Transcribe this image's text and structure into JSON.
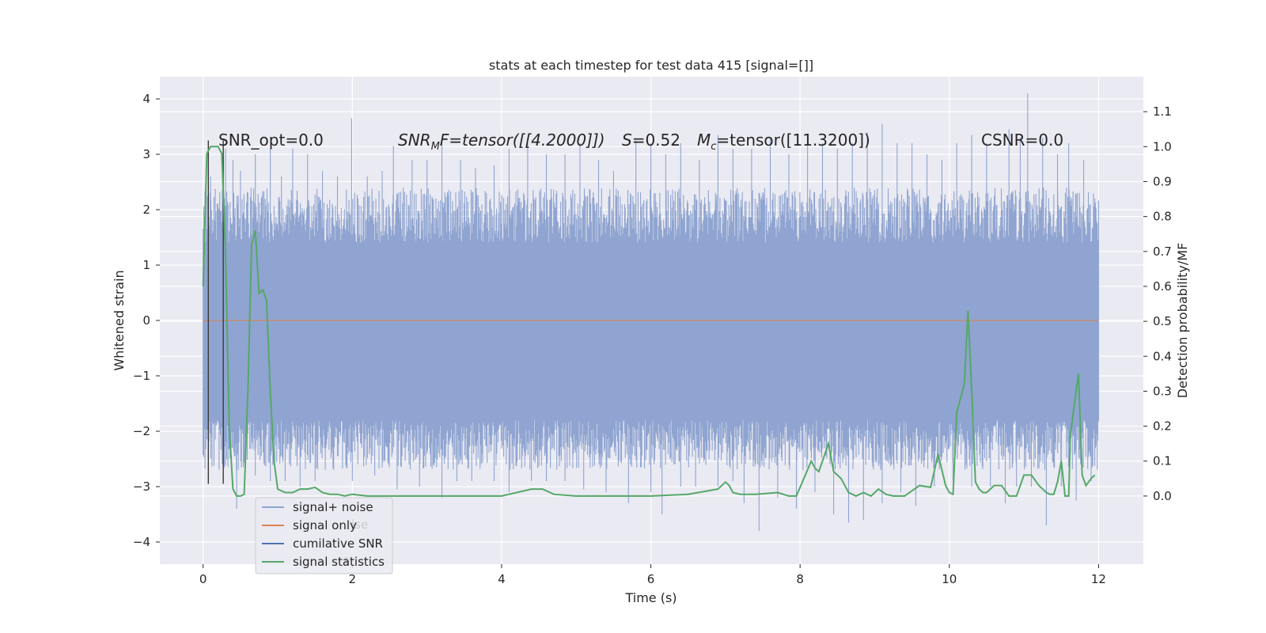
{
  "chart_data": {
    "type": "line",
    "title": "stats at each timestep for test data 415 [signal=[]]",
    "xlabel": "Time (s)",
    "ylabel_left": "Whitened strain",
    "ylabel_right": "Detection probability/MF",
    "xlim": [
      -0.58,
      12.6
    ],
    "ylim_left": [
      -4.4,
      4.4
    ],
    "ylim_right": [
      -0.195,
      1.2
    ],
    "xticks": [
      0,
      2,
      4,
      6,
      8,
      10,
      12
    ],
    "xtick_labels": [
      "0",
      "2",
      "4",
      "6",
      "8",
      "10",
      "12"
    ],
    "yticks_left": [
      4,
      3,
      2,
      1,
      0,
      -1,
      -2,
      -3,
      -4
    ],
    "ytick_labels_left": [
      "4",
      "3",
      "2",
      "1",
      "0",
      "−1",
      "−2",
      "−3",
      "−4"
    ],
    "yticks_right": [
      1.1,
      1.0,
      0.9,
      0.8,
      0.7,
      0.6,
      0.5,
      0.4,
      0.3,
      0.2,
      0.1,
      0.0
    ],
    "ytick_labels_right": [
      "1.1",
      "1.0",
      "0.9",
      "0.8",
      "0.7",
      "0.6",
      "0.5",
      "0.4",
      "0.3",
      "0.2",
      "0.1",
      "0.0"
    ],
    "annotations": {
      "snr_opt": "SNR_opt=0.0",
      "snr_mf_prefix": "SNR",
      "snr_mf_sub": "M",
      "snr_mf_rest": "F=tensor([[4.2000]])",
      "s_var": "S",
      "s_val": "=0.52",
      "mc_var": "M",
      "mc_sub": "c",
      "mc_rest": "=tensor([11.3200])",
      "csnr": "CSNR=0.0"
    },
    "legend": {
      "location": "lower-left",
      "entries": [
        {
          "label": "signal+ noise",
          "color": "#8fa4d0"
        },
        {
          "label": "signal only",
          "color": "#dd8452"
        },
        {
          "label": "cumilative SNR",
          "color": "#4c72b0"
        },
        {
          "label": "signal statistics",
          "color": "#55a868"
        }
      ],
      "ghost_text_1": "ise",
      "ghost_text_2": "s"
    },
    "series": [
      {
        "name": "signal+ noise",
        "color": "#8fa4d0",
        "t_range": [
          0,
          12
        ],
        "band_low": -1.8,
        "band_high": 1.38,
        "peaks_high": [
          [
            0.1,
            2.6
          ],
          [
            0.3,
            3.1
          ],
          [
            0.4,
            2.9
          ],
          [
            0.5,
            2.7
          ],
          [
            0.7,
            3.0
          ],
          [
            0.9,
            3.1
          ],
          [
            1.05,
            2.6
          ],
          [
            1.2,
            3.1
          ],
          [
            1.4,
            3.0
          ],
          [
            1.6,
            2.7
          ],
          [
            1.8,
            2.6
          ],
          [
            1.99,
            3.65
          ],
          [
            2.2,
            2.6
          ],
          [
            2.4,
            2.7
          ],
          [
            2.55,
            3.15
          ],
          [
            2.8,
            2.9
          ],
          [
            3.0,
            2.9
          ],
          [
            3.2,
            3.2
          ],
          [
            3.45,
            2.9
          ],
          [
            3.65,
            2.75
          ],
          [
            3.9,
            2.8
          ],
          [
            4.1,
            3.1
          ],
          [
            4.35,
            3.2
          ],
          [
            4.6,
            3.0
          ],
          [
            4.85,
            3.0
          ],
          [
            5.05,
            3.2
          ],
          [
            5.3,
            2.9
          ],
          [
            5.5,
            2.7
          ],
          [
            5.8,
            3.25
          ],
          [
            6.0,
            3.2
          ],
          [
            6.2,
            3.0
          ],
          [
            6.4,
            3.2
          ],
          [
            6.65,
            2.9
          ],
          [
            6.9,
            3.35
          ],
          [
            7.1,
            3.1
          ],
          [
            7.35,
            3.1
          ],
          [
            7.6,
            3.3
          ],
          [
            7.85,
            3.0
          ],
          [
            8.1,
            3.15
          ],
          [
            8.3,
            3.2
          ],
          [
            8.5,
            3.1
          ],
          [
            8.7,
            3.2
          ],
          [
            8.9,
            3.4
          ],
          [
            9.1,
            3.55
          ],
          [
            9.3,
            3.2
          ],
          [
            9.5,
            3.2
          ],
          [
            9.7,
            3.0
          ],
          [
            9.9,
            2.9
          ],
          [
            10.1,
            3.2
          ],
          [
            10.3,
            3.35
          ],
          [
            10.5,
            3.2
          ],
          [
            10.8,
            3.45
          ],
          [
            10.95,
            3.3
          ],
          [
            11.05,
            4.1
          ],
          [
            11.25,
            3.3
          ],
          [
            11.45,
            3.0
          ],
          [
            11.6,
            3.2
          ],
          [
            11.8,
            2.9
          ],
          [
            11.95,
            2.2
          ]
        ],
        "peaks_low": [
          [
            0.1,
            -2.0
          ],
          [
            0.3,
            -2.6
          ],
          [
            0.45,
            -3.4
          ],
          [
            0.7,
            -2.8
          ],
          [
            0.9,
            -2.9
          ],
          [
            1.1,
            -2.9
          ],
          [
            1.3,
            -3.0
          ],
          [
            1.5,
            -2.9
          ],
          [
            1.75,
            -2.7
          ],
          [
            2.0,
            -2.9
          ],
          [
            2.3,
            -2.8
          ],
          [
            2.6,
            -3.05
          ],
          [
            2.9,
            -3.0
          ],
          [
            3.2,
            -3.2
          ],
          [
            3.4,
            -2.9
          ],
          [
            3.6,
            -2.9
          ],
          [
            3.9,
            -2.9
          ],
          [
            4.1,
            -3.1
          ],
          [
            4.4,
            -2.9
          ],
          [
            4.6,
            -2.9
          ],
          [
            4.85,
            -2.9
          ],
          [
            5.1,
            -3.05
          ],
          [
            5.4,
            -3.1
          ],
          [
            5.7,
            -3.3
          ],
          [
            6.0,
            -3.1
          ],
          [
            6.15,
            -3.5
          ],
          [
            6.4,
            -3.0
          ],
          [
            6.6,
            -3.0
          ],
          [
            6.9,
            -3.0
          ],
          [
            7.1,
            -2.9
          ],
          [
            7.25,
            -3.3
          ],
          [
            7.45,
            -3.8
          ],
          [
            7.7,
            -3.2
          ],
          [
            7.95,
            -3.4
          ],
          [
            8.2,
            -3.1
          ],
          [
            8.45,
            -3.5
          ],
          [
            8.65,
            -3.65
          ],
          [
            8.85,
            -3.6
          ],
          [
            9.1,
            -3.3
          ],
          [
            9.35,
            -3.1
          ],
          [
            9.55,
            -3.35
          ],
          [
            9.8,
            -3.0
          ],
          [
            10.05,
            -2.9
          ],
          [
            10.3,
            -3.0
          ],
          [
            10.55,
            -3.0
          ],
          [
            10.75,
            -3.3
          ],
          [
            10.9,
            -3.0
          ],
          [
            11.1,
            -3.0
          ],
          [
            11.3,
            -3.7
          ],
          [
            11.5,
            -3.0
          ],
          [
            11.7,
            -3.25
          ],
          [
            11.9,
            -2.9
          ]
        ]
      },
      {
        "name": "signal only",
        "color": "#dd8452",
        "x": [
          0,
          12
        ],
        "y": [
          0,
          0
        ]
      },
      {
        "name": "cumilative SNR",
        "color": "#4c72b0",
        "x": [],
        "y": []
      },
      {
        "name": "signal statistics",
        "color": "#55a868",
        "axis": "right",
        "x": [
          0.0,
          0.05,
          0.1,
          0.15,
          0.2,
          0.25,
          0.3,
          0.35,
          0.4,
          0.45,
          0.5,
          0.55,
          0.6,
          0.65,
          0.7,
          0.75,
          0.8,
          0.85,
          0.9,
          0.95,
          1.0,
          1.1,
          1.2,
          1.3,
          1.4,
          1.5,
          1.6,
          1.7,
          1.8,
          1.9,
          2.0,
          2.2,
          2.5,
          3.0,
          3.5,
          4.0,
          4.4,
          4.55,
          4.7,
          5.0,
          5.5,
          6.0,
          6.5,
          6.9,
          7.0,
          7.05,
          7.1,
          7.2,
          7.4,
          7.7,
          7.85,
          7.95,
          8.05,
          8.15,
          8.2,
          8.25,
          8.3,
          8.38,
          8.45,
          8.55,
          8.65,
          8.75,
          8.85,
          8.95,
          9.05,
          9.15,
          9.25,
          9.4,
          9.6,
          9.75,
          9.85,
          9.95,
          10.0,
          10.05,
          10.1,
          10.2,
          10.25,
          10.3,
          10.35,
          10.4,
          10.45,
          10.5,
          10.6,
          10.7,
          10.8,
          10.9,
          11.0,
          11.1,
          11.2,
          11.3,
          11.35,
          11.4,
          11.45,
          11.5,
          11.55,
          11.6,
          11.62,
          11.68,
          11.73,
          11.78,
          11.83,
          11.9,
          11.95
        ],
        "y": [
          0.6,
          0.98,
          1.0,
          1.0,
          1.0,
          0.98,
          0.7,
          0.2,
          0.02,
          0.0,
          0.0,
          0.005,
          0.3,
          0.72,
          0.76,
          0.58,
          0.59,
          0.56,
          0.3,
          0.1,
          0.02,
          0.01,
          0.01,
          0.02,
          0.02,
          0.025,
          0.01,
          0.005,
          0.005,
          0.0,
          0.005,
          0.0,
          0.0,
          0.0,
          0.0,
          0.0,
          0.02,
          0.02,
          0.005,
          0.0,
          0.0,
          0.0,
          0.005,
          0.02,
          0.04,
          0.03,
          0.01,
          0.005,
          0.005,
          0.01,
          0.0,
          0.0,
          0.05,
          0.1,
          0.08,
          0.07,
          0.1,
          0.15,
          0.07,
          0.05,
          0.01,
          0.0,
          0.01,
          0.0,
          0.02,
          0.005,
          0.0,
          0.0,
          0.03,
          0.025,
          0.12,
          0.03,
          0.01,
          0.005,
          0.24,
          0.32,
          0.53,
          0.3,
          0.04,
          0.02,
          0.01,
          0.01,
          0.03,
          0.03,
          0.0,
          0.0,
          0.06,
          0.06,
          0.03,
          0.01,
          0.005,
          0.005,
          0.04,
          0.1,
          0.0,
          0.0,
          0.17,
          0.27,
          0.35,
          0.06,
          0.03,
          0.05,
          0.06
        ]
      }
    ],
    "vertical_lines": {
      "color": "#3a3a3a",
      "x": [
        0.07,
        0.27
      ],
      "y_range_left": [
        -2.95,
        3.25
      ]
    }
  }
}
